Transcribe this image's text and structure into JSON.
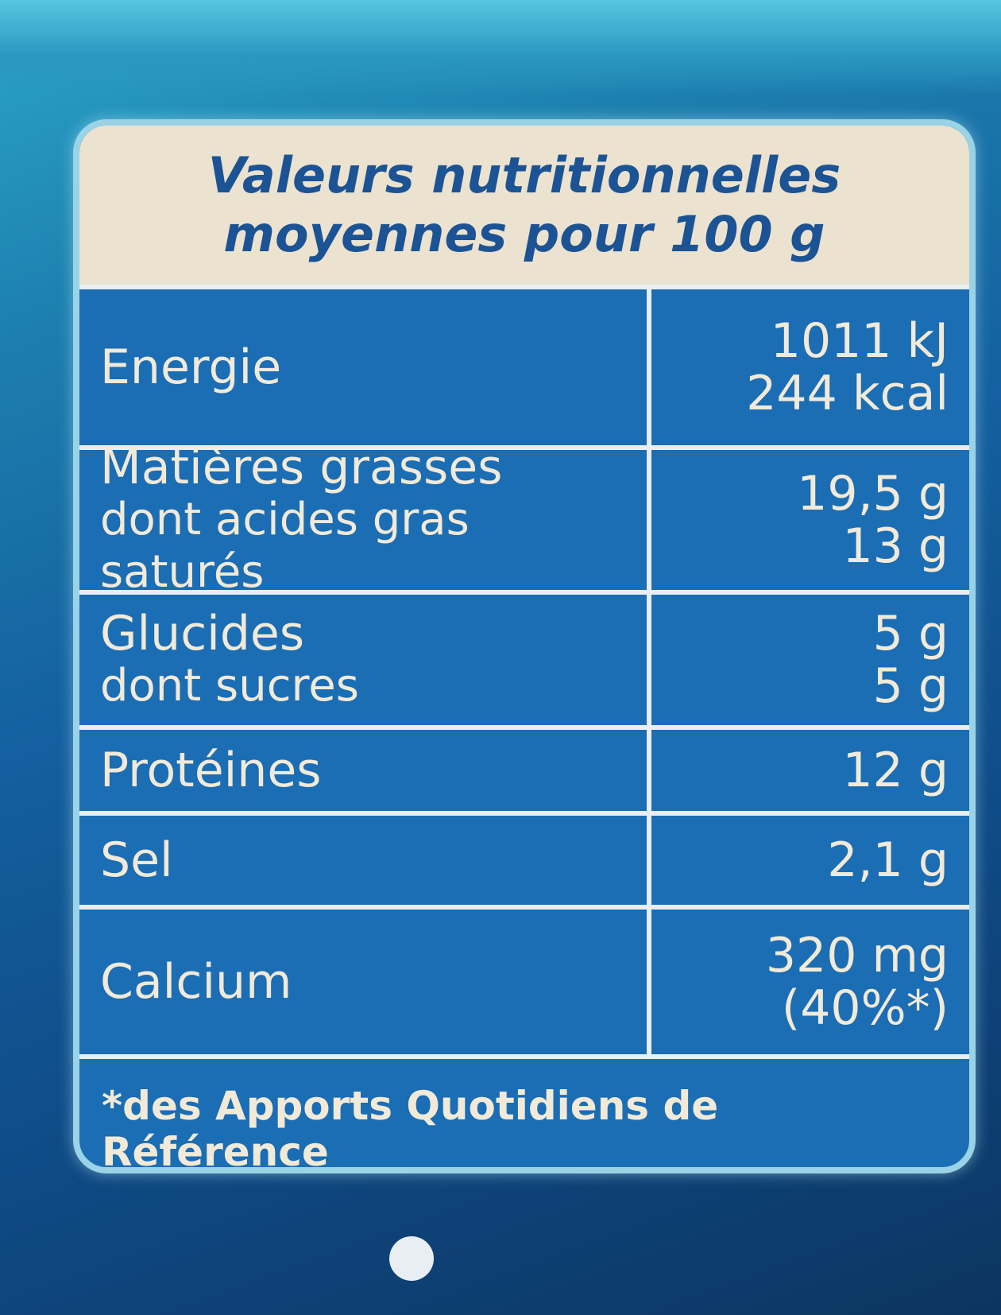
{
  "header": {
    "line1": "Valeurs nutritionnelles",
    "line2": "moyennes pour 100 g"
  },
  "rows": [
    {
      "name": "Energie",
      "values": [
        "1011 kJ",
        "244 kcal"
      ]
    },
    {
      "name": "Matières grasses",
      "sub": "dont acides gras saturés",
      "values": [
        "19,5 g",
        "13 g"
      ]
    },
    {
      "name": "Glucides",
      "sub": "dont sucres",
      "values": [
        "5 g",
        "5 g"
      ]
    },
    {
      "name": "Protéines",
      "values": [
        "12 g"
      ]
    },
    {
      "name": "Sel",
      "values": [
        "2,1 g"
      ]
    },
    {
      "name": "Calcium",
      "values": [
        "320 mg",
        "(40%*)"
      ]
    }
  ],
  "footnote": "*des Apports Quotidiens de Référence",
  "colors": {
    "table_blue": "#1b6db4",
    "header_beige": "#ebe2d0",
    "header_text": "#1b5394",
    "cell_text": "#f1ead8"
  }
}
